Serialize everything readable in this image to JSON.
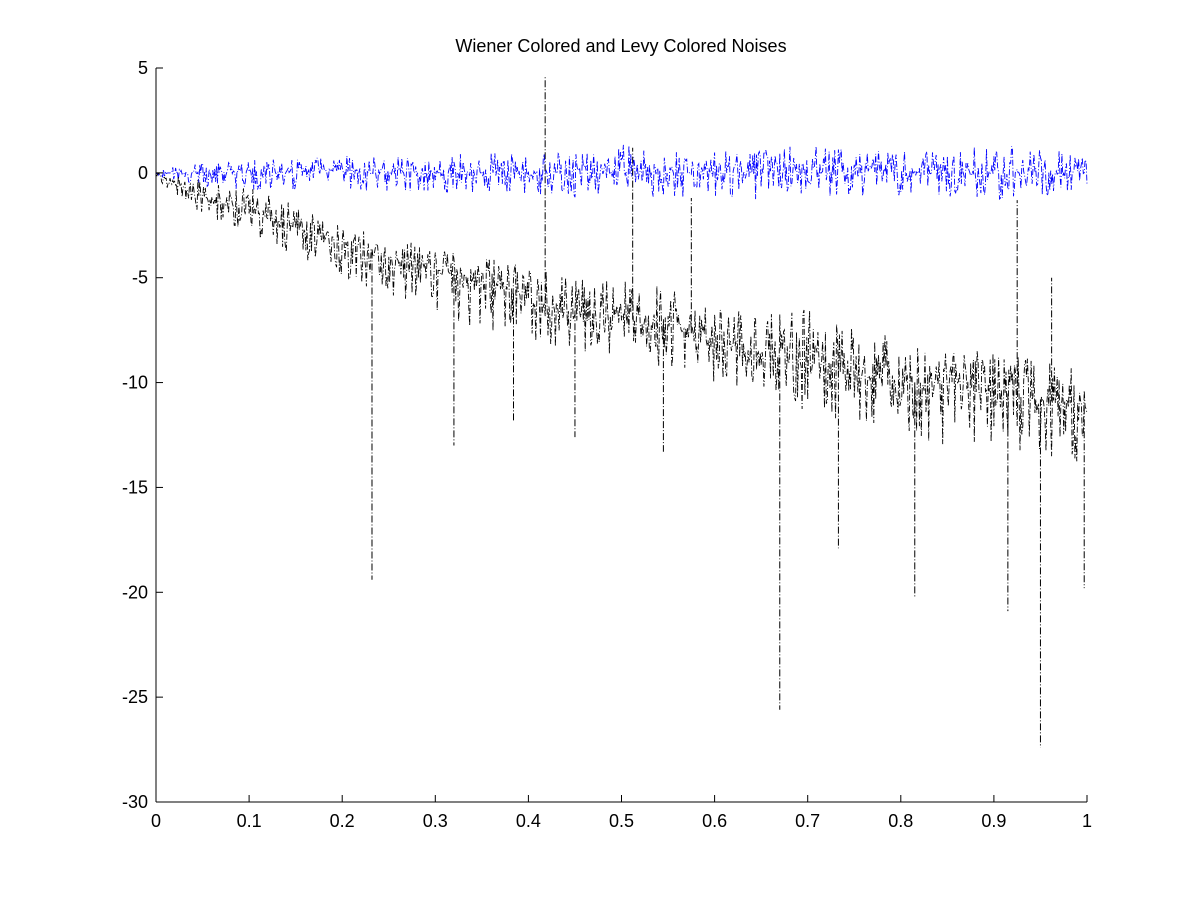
{
  "chart_data": {
    "type": "line",
    "title": "Wiener Colored and Levy Colored Noises",
    "xlabel": "",
    "ylabel": "",
    "xlim": [
      0,
      1
    ],
    "ylim": [
      -30,
      5
    ],
    "x_ticks": [
      "0",
      "0.1",
      "0.2",
      "0.3",
      "0.4",
      "0.5",
      "0.6",
      "0.7",
      "0.8",
      "0.9",
      "1"
    ],
    "y_ticks": [
      "5",
      "0",
      "-5",
      "-10",
      "-15",
      "-20",
      "-25",
      "-30"
    ],
    "grid": false,
    "legend": "none",
    "series": [
      {
        "color": "#0000ff",
        "line_style": "dash-dot",
        "x": [
          0,
          0.05,
          0.1,
          0.15,
          0.2,
          0.25,
          0.3,
          0.35,
          0.4,
          0.45,
          0.5,
          0.55,
          0.6,
          0.65,
          0.7,
          0.75,
          0.8,
          0.85,
          0.9,
          0.95,
          1
        ],
        "y_center": [
          0,
          0,
          0.05,
          0.05,
          0.05,
          0,
          0,
          0,
          0,
          0,
          0.05,
          0,
          0,
          0,
          0.05,
          0,
          0,
          0,
          0.05,
          0,
          0
        ],
        "y_low": [
          -0.3,
          -0.7,
          -0.8,
          -0.8,
          -0.9,
          -0.9,
          -0.9,
          -1.1,
          -1.2,
          -1.2,
          -1.1,
          -1.2,
          -1.2,
          -1.3,
          -1.2,
          -1.2,
          -1.1,
          -1.2,
          -1.3,
          -1.2,
          -1.0
        ],
        "y_high": [
          0.2,
          0.5,
          0.6,
          0.7,
          0.8,
          0.8,
          0.9,
          0.9,
          1.0,
          0.9,
          1.4,
          1.0,
          1.0,
          1.1,
          1.4,
          1.1,
          1.0,
          1.1,
          1.6,
          1.3,
          0.8
        ]
      },
      {
        "color": "#000000",
        "line_style": "dash-dot",
        "x": [
          0,
          0.05,
          0.1,
          0.15,
          0.2,
          0.25,
          0.3,
          0.35,
          0.4,
          0.45,
          0.5,
          0.55,
          0.6,
          0.65,
          0.7,
          0.75,
          0.8,
          0.85,
          0.9,
          0.95,
          1
        ],
        "y_center": [
          0,
          -1.2,
          -1.8,
          -2.6,
          -3.3,
          -4.0,
          -4.6,
          -5.2,
          -6.0,
          -6.6,
          -6.9,
          -7.3,
          -8.0,
          -8.6,
          -9.1,
          -9.6,
          -9.9,
          -10.2,
          -10.4,
          -10.8,
          -11.2
        ],
        "y_low": [
          -0.5,
          -2.0,
          -3.0,
          -4.0,
          -5.0,
          -6.0,
          -7.0,
          -7.5,
          -8.0,
          -8.5,
          -9.0,
          -9.5,
          -10.0,
          -10.5,
          -11.5,
          -12.0,
          -12.5,
          -13.0,
          -13.0,
          -13.5,
          -14.0
        ],
        "y_high": [
          0.1,
          -0.3,
          -0.5,
          -1.5,
          -2.3,
          -3.0,
          -3.5,
          -4.0,
          -4.5,
          -5.0,
          -5.0,
          -5.5,
          -6.0,
          -6.8,
          -6.5,
          -7.0,
          -8.0,
          -8.0,
          -8.5,
          -8.8,
          -9.5
        ],
        "spikes": [
          {
            "x": 0.232,
            "y": -19.4
          },
          {
            "x": 0.32,
            "y": -13.0
          },
          {
            "x": 0.384,
            "y": -11.8
          },
          {
            "x": 0.418,
            "y": 4.6
          },
          {
            "x": 0.45,
            "y": -12.6
          },
          {
            "x": 0.512,
            "y": 1.2
          },
          {
            "x": 0.545,
            "y": -13.3
          },
          {
            "x": 0.575,
            "y": -1.2
          },
          {
            "x": 0.67,
            "y": -25.6
          },
          {
            "x": 0.733,
            "y": -17.9
          },
          {
            "x": 0.815,
            "y": -20.2
          },
          {
            "x": 0.915,
            "y": -20.9
          },
          {
            "x": 0.925,
            "y": -1.3
          },
          {
            "x": 0.95,
            "y": -27.4
          },
          {
            "x": 0.962,
            "y": -5.0
          },
          {
            "x": 0.997,
            "y": -19.8
          }
        ]
      }
    ]
  }
}
